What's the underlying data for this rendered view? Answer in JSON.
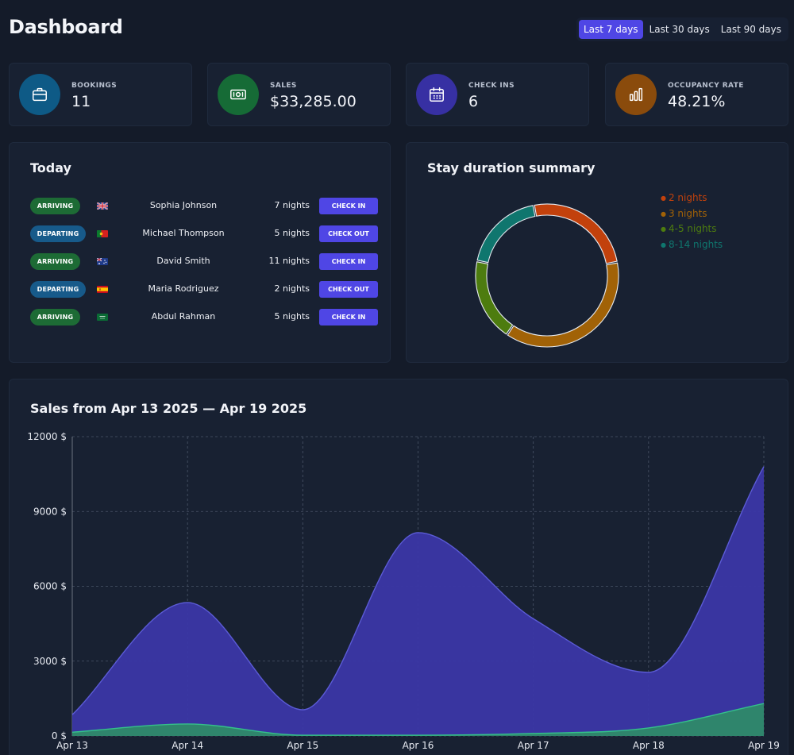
{
  "header": {
    "title": "Dashboard",
    "ranges": [
      {
        "label": "Last 7 days",
        "active": true
      },
      {
        "label": "Last 30 days",
        "active": false
      },
      {
        "label": "Last 90 days",
        "active": false
      }
    ]
  },
  "stats": [
    {
      "label": "BOOKINGS",
      "value": "11",
      "icon": "briefcase-icon",
      "color": "#0e5a86"
    },
    {
      "label": "SALES",
      "value": "$33,285.00",
      "icon": "banknote-icon",
      "color": "#166b36"
    },
    {
      "label": "CHECK INS",
      "value": "6",
      "icon": "calendar-icon",
      "color": "#3730a3"
    },
    {
      "label": "OCCUPANCY RATE",
      "value": "48.21%",
      "icon": "bar-chart-icon",
      "color": "#8a4b0c"
    }
  ],
  "today": {
    "title": "Today",
    "rows": [
      {
        "status": "ARRIVING",
        "flag": "uk-flag-icon",
        "name": "Sophia Johnson",
        "nights": "7 nights",
        "action": "CHECK IN"
      },
      {
        "status": "DEPARTING",
        "flag": "portugal-flag-icon",
        "name": "Michael Thompson",
        "nights": "5 nights",
        "action": "CHECK OUT"
      },
      {
        "status": "ARRIVING",
        "flag": "australia-flag-icon",
        "name": "David Smith",
        "nights": "11 nights",
        "action": "CHECK IN"
      },
      {
        "status": "DEPARTING",
        "flag": "spain-flag-icon",
        "name": "Maria Rodriguez",
        "nights": "2 nights",
        "action": "CHECK OUT"
      },
      {
        "status": "ARRIVING",
        "flag": "saudi-arabia-flag-icon",
        "name": "Abdul Rahman",
        "nights": "5 nights",
        "action": "CHECK IN"
      }
    ]
  },
  "stay": {
    "title": "Stay duration summary",
    "chart_data": {
      "type": "pie",
      "categories": [
        "2 nights",
        "3 nights",
        "4-5 nights",
        "8-14 nights"
      ],
      "values": [
        25,
        37.5,
        18.75,
        18.75
      ],
      "colors": [
        "#c2410c",
        "#a16207",
        "#4d7c0f",
        "#0f766e"
      ],
      "legend": "right"
    }
  },
  "sales": {
    "title": "Sales from Apr 13 2025 — Apr 19 2025",
    "chart_data": {
      "type": "area",
      "categories": [
        "Apr 13",
        "Apr 14",
        "Apr 15",
        "Apr 16",
        "Apr 17",
        "Apr 18",
        "Apr 19"
      ],
      "series": [
        {
          "values": [
            850,
            5350,
            1050,
            8150,
            4700,
            2550,
            10800
          ],
          "color": "#3b37a6"
        },
        {
          "values": [
            150,
            480,
            30,
            30,
            100,
            320,
            1300
          ],
          "color": "#2e8a69"
        }
      ],
      "ylim": [
        0,
        12000
      ],
      "yticks": [
        "0 $",
        "3000 $",
        "6000 $",
        "9000 $",
        "12000 $"
      ],
      "grid": true
    }
  }
}
